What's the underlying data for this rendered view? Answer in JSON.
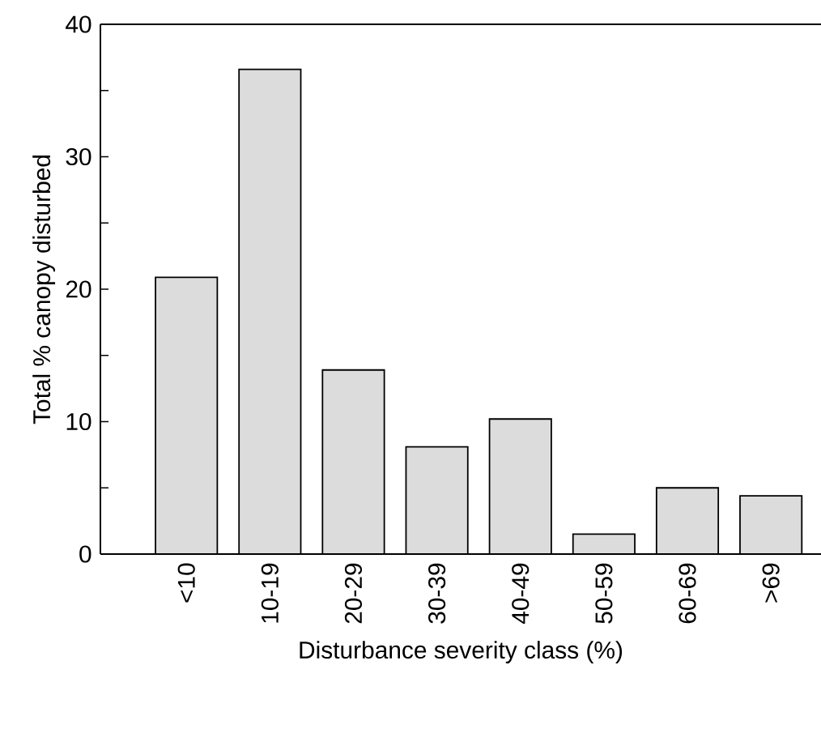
{
  "chart_data": {
    "type": "bar",
    "xlabel": "Disturbance severity class (%)",
    "ylabel": "Total % canopy disturbed",
    "categories": [
      "<10",
      "10-19",
      "20-29",
      "30-39",
      "40-49",
      "50-59",
      "60-69",
      ">69"
    ],
    "values": [
      20.9,
      36.6,
      13.9,
      8.1,
      10.2,
      1.5,
      5.0,
      4.4
    ],
    "color": "#dcdcdc",
    "ylim": [
      0,
      40
    ],
    "yticks": [
      0,
      {
        "value": 5,
        "label": null
      },
      10,
      {
        "value": 15,
        "label": null
      },
      20,
      {
        "value": 25,
        "label": null
      },
      30,
      {
        "value": 35,
        "label": null
      },
      40
    ],
    "grid": false
  }
}
